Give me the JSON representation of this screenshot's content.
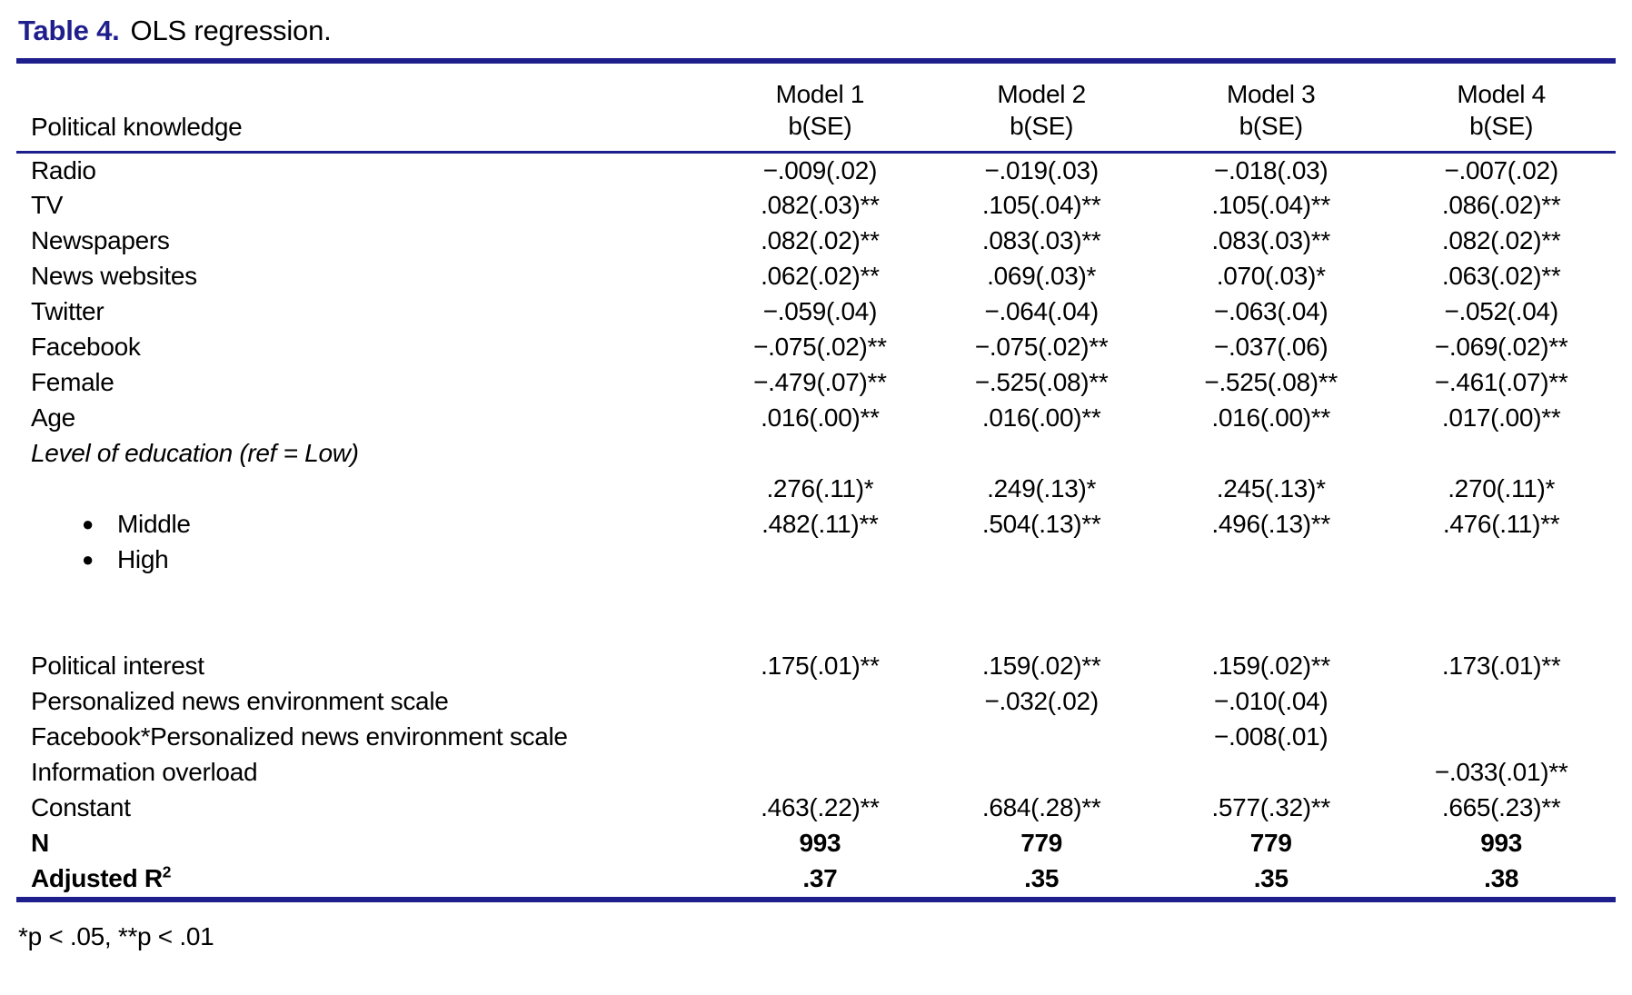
{
  "title": {
    "label": "Table 4.",
    "rest": "OLS regression."
  },
  "table": {
    "row_header_label": "Political knowledge",
    "list_bullet": "●",
    "columns": [
      {
        "name": "Model 1",
        "sub": "b(SE)"
      },
      {
        "name": "Model 2",
        "sub": "b(SE)"
      },
      {
        "name": "Model 3",
        "sub": "b(SE)"
      },
      {
        "name": "Model 4",
        "sub": "b(SE)"
      }
    ],
    "rows": [
      {
        "label": "Radio",
        "values": [
          "−.009(.02)",
          "−.019(.03)",
          "−.018(.03)",
          "−.007(.02)"
        ]
      },
      {
        "label": "TV",
        "values": [
          ".082(.03)**",
          ".105(.04)**",
          ".105(.04)**",
          ".086(.02)**"
        ]
      },
      {
        "label": "Newspapers",
        "values": [
          ".082(.02)**",
          ".083(.03)**",
          ".083(.03)**",
          ".082(.02)**"
        ]
      },
      {
        "label": "News websites",
        "values": [
          ".062(.02)**",
          ".069(.03)*",
          ".070(.03)*",
          ".063(.02)**"
        ]
      },
      {
        "label": "Twitter",
        "values": [
          "−.059(.04)",
          "−.064(.04)",
          "−.063(.04)",
          "−.052(.04)"
        ]
      },
      {
        "label": "Facebook",
        "values": [
          "−.075(.02)**",
          "−.075(.02)**",
          "−.037(.06)",
          "−.069(.02)**"
        ]
      },
      {
        "label": "Female",
        "values": [
          "−.479(.07)**",
          "−.525(.08)**",
          "−.525(.08)**",
          "−.461(.07)**"
        ]
      },
      {
        "label": "Age",
        "values": [
          ".016(.00)**",
          ".016(.00)**",
          ".016(.00)**",
          ".017(.00)**"
        ]
      },
      {
        "label": "Level of education (ref = Low)",
        "style": "italic",
        "values": [
          "",
          "",
          "",
          ""
        ]
      },
      {
        "label": "",
        "values": [
          ".276(.11)*",
          ".249(.13)*",
          ".245(.13)*",
          ".270(.11)*"
        ]
      },
      {
        "label": "Middle",
        "bullet": true,
        "values": [
          ".482(.11)**",
          ".504(.13)**",
          ".496(.13)**",
          ".476(.11)**"
        ]
      },
      {
        "label": "High",
        "bullet": true,
        "values": [
          "",
          "",
          "",
          ""
        ]
      },
      {
        "spacer": true
      },
      {
        "label": "Political interest",
        "values": [
          ".175(.01)**",
          ".159(.02)**",
          ".159(.02)**",
          ".173(.01)**"
        ]
      },
      {
        "label": "Personalized news environment scale",
        "values": [
          "",
          "−.032(.02)",
          "−.010(.04)",
          ""
        ]
      },
      {
        "label": "Facebook*Personalized news environment scale",
        "values": [
          "",
          "",
          "−.008(.01)",
          ""
        ]
      },
      {
        "label": "Information overload",
        "values": [
          "",
          "",
          "",
          "−.033(.01)**"
        ]
      },
      {
        "label": "Constant",
        "values": [
          ".463(.22)**",
          ".684(.28)**",
          ".577(.32)**",
          ".665(.23)**"
        ]
      },
      {
        "label": "N",
        "style": "bold",
        "values": [
          "993",
          "779",
          "779",
          "993"
        ]
      },
      {
        "label": "Adjusted R",
        "sup": "2",
        "style": "bold",
        "values": [
          ".37",
          ".35",
          ".35",
          ".38"
        ]
      }
    ]
  },
  "footnote": "*p < .05, **p < .01",
  "colors": {
    "accent": "#1e1e8c",
    "text": "#000000",
    "background": "#ffffff"
  }
}
